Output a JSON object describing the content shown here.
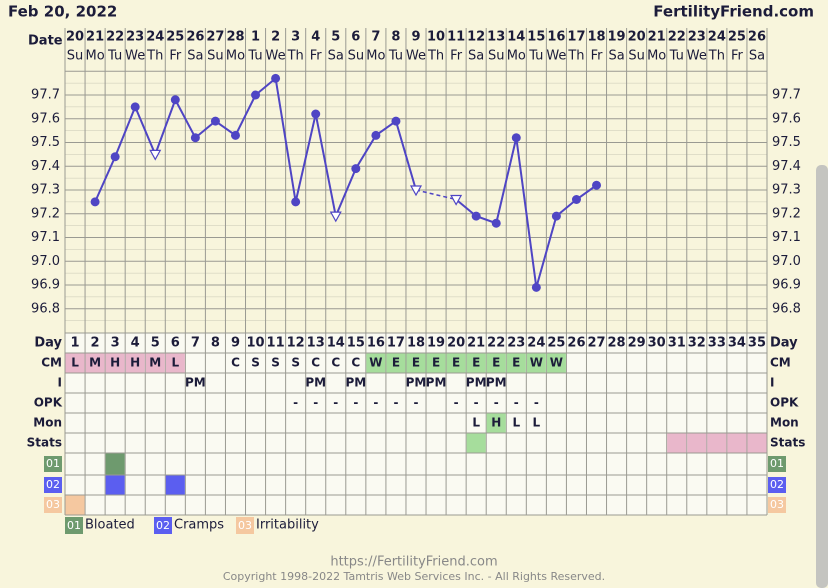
{
  "header": {
    "date": "Feb 20, 2022",
    "site": "FertilityFriend.com"
  },
  "chart_data": {
    "type": "line",
    "x_label": "Date",
    "day_label": "Day",
    "dates": [
      20,
      21,
      22,
      23,
      24,
      25,
      26,
      27,
      28,
      1,
      2,
      3,
      4,
      5,
      6,
      7,
      8,
      9,
      10,
      11,
      12,
      13,
      14,
      15,
      16,
      17,
      18,
      19,
      20,
      21,
      22,
      23,
      24,
      25,
      26
    ],
    "weekdays": [
      "Su",
      "Mo",
      "Tu",
      "We",
      "Th",
      "Fr",
      "Sa",
      "Su",
      "Mo",
      "Tu",
      "We",
      "Th",
      "Fr",
      "Sa",
      "Su",
      "Mo",
      "Tu",
      "We",
      "Th",
      "Fr",
      "Sa",
      "Su",
      "Mo",
      "Tu",
      "We",
      "Th",
      "Fr",
      "Sa",
      "Su",
      "Mo",
      "Tu",
      "We",
      "Th",
      "Fr",
      "Sa"
    ],
    "categories": [
      1,
      2,
      3,
      4,
      5,
      6,
      7,
      8,
      9,
      10,
      11,
      12,
      13,
      14,
      15,
      16,
      17,
      18,
      19,
      20,
      21,
      22,
      23,
      24,
      25,
      26,
      27,
      28,
      29,
      30,
      31,
      32,
      33,
      34,
      35
    ],
    "values": [
      null,
      97.25,
      97.44,
      97.65,
      97.45,
      97.68,
      97.52,
      97.59,
      97.53,
      97.7,
      97.77,
      97.25,
      97.62,
      97.19,
      97.39,
      97.53,
      97.59,
      97.3,
      null,
      97.26,
      97.19,
      97.16,
      97.52,
      96.89,
      97.19,
      97.26,
      97.32,
      null,
      null,
      null,
      null,
      null,
      null,
      null,
      null
    ],
    "point_styles": [
      null,
      "dot",
      "dot",
      "dot",
      "triangle",
      "dot",
      "dot",
      "dot",
      "dot",
      "dot",
      "dot",
      "dot",
      "dot",
      "triangle",
      "dot",
      "dot",
      "dot",
      "triangle",
      null,
      "triangle",
      "dot",
      "dot",
      "dot",
      "dot",
      "dot",
      "dot",
      "dot",
      null,
      null,
      null,
      null,
      null,
      null,
      null,
      null
    ],
    "color": "#4f45c4",
    "ylim": [
      96.7,
      97.8
    ],
    "yticks": [
      96.8,
      96.9,
      {
        "value": 97.0,
        "label": "97.0"
      },
      97.1,
      97.2,
      97.3,
      97.4,
      97.5,
      97.6,
      97.7
    ],
    "grid": true
  },
  "rows": [
    {
      "label": "CM",
      "cells": [
        "L",
        "M",
        "H",
        "H",
        "M",
        "L",
        null,
        null,
        "C",
        "S",
        "S",
        "S",
        "C",
        "C",
        "C",
        "W",
        "E",
        "E",
        "E",
        "E",
        "E",
        "E",
        "E",
        "W",
        "W",
        null,
        null,
        null,
        null,
        null,
        null,
        null,
        null,
        null,
        null
      ],
      "colors": [
        "#e9b7cb",
        "#e9b7cb",
        "#e9b7cb",
        "#e9b7cb",
        "#e9b7cb",
        "#e9b7cb",
        null,
        null,
        null,
        null,
        null,
        null,
        null,
        null,
        null,
        "#a6dd9c",
        "#a6dd9c",
        "#a6dd9c",
        "#a6dd9c",
        "#a6dd9c",
        "#a6dd9c",
        "#a6dd9c",
        "#a6dd9c",
        "#a6dd9c",
        "#a6dd9c",
        null,
        null,
        null,
        null,
        null,
        null,
        null,
        null,
        null,
        null
      ]
    },
    {
      "label": "I",
      "cells": [
        null,
        null,
        null,
        null,
        null,
        null,
        "PM",
        null,
        null,
        null,
        null,
        null,
        "PM",
        null,
        "PM",
        null,
        null,
        "PM",
        "PM",
        null,
        "PM",
        "PM",
        null,
        null,
        null,
        null,
        null,
        null,
        null,
        null,
        null,
        null,
        null,
        null,
        null
      ]
    },
    {
      "label": "OPK",
      "cells": [
        null,
        null,
        null,
        null,
        null,
        null,
        null,
        null,
        null,
        null,
        null,
        "-",
        "-",
        "-",
        "-",
        "-",
        "-",
        "-",
        null,
        "-",
        "-",
        "-",
        "-",
        "-",
        null,
        null,
        null,
        null,
        null,
        null,
        null,
        null,
        null,
        null,
        null
      ]
    },
    {
      "label": "Mon",
      "cells": [
        null,
        null,
        null,
        null,
        null,
        null,
        null,
        null,
        null,
        null,
        null,
        null,
        null,
        null,
        null,
        null,
        null,
        null,
        null,
        null,
        "L",
        "H",
        "L",
        "L",
        null,
        null,
        null,
        null,
        null,
        null,
        null,
        null,
        null,
        null,
        null
      ],
      "colors": [
        null,
        null,
        null,
        null,
        null,
        null,
        null,
        null,
        null,
        null,
        null,
        null,
        null,
        null,
        null,
        null,
        null,
        null,
        null,
        null,
        null,
        "#a6dd9c",
        null,
        null,
        null,
        null,
        null,
        null,
        null,
        null,
        null,
        null,
        null,
        null,
        null
      ]
    },
    {
      "label": "Stats",
      "colors": [
        null,
        null,
        null,
        null,
        null,
        null,
        null,
        null,
        null,
        null,
        null,
        null,
        null,
        null,
        null,
        null,
        null,
        null,
        null,
        null,
        "#a6dd9c",
        null,
        null,
        null,
        null,
        null,
        null,
        null,
        null,
        null,
        "#e9b7cb",
        "#e9b7cb",
        "#e9b7cb",
        "#e9b7cb",
        "#e9b7cb"
      ]
    }
  ],
  "symptoms": [
    {
      "code": "01",
      "name": "Bloated",
      "color": "#6e9a6e",
      "days": [
        3
      ]
    },
    {
      "code": "02",
      "name": "Cramps",
      "color": "#5b5ef0",
      "days": [
        3,
        6
      ]
    },
    {
      "code": "03",
      "name": "Irritability",
      "color": "#f5c8a0",
      "days": [
        1
      ]
    }
  ],
  "footer": {
    "url": "https://FertilityFriend.com",
    "copyright": "Copyright 1998-2022 Tamtris Web Services Inc. - All Rights Reserved."
  }
}
